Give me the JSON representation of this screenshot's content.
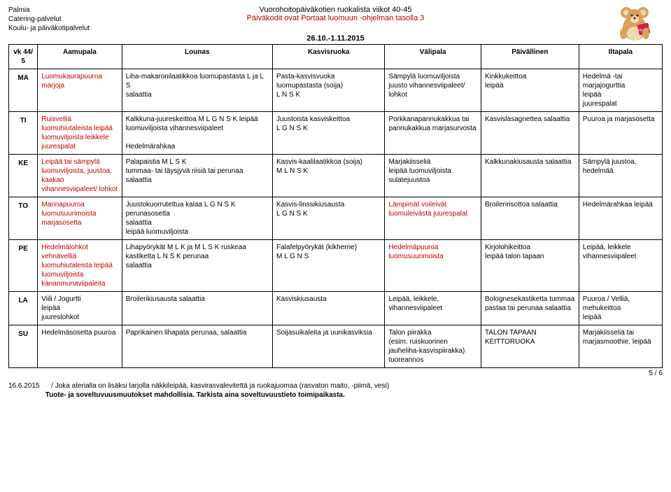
{
  "header": {
    "org1": "Palmia",
    "org2": "Catering-palvelut",
    "org3": "Koulu- ja päiväkotipalvelut",
    "title1": "Vuorohoitopäiväkotien ruokalista viikot 40-45",
    "title2": "Päiväkodit ovat Portaat luomuun -ohjelman tasolla 3",
    "date": "26.10.-1.11.2015"
  },
  "columns": [
    "vk 44/ 5",
    "Aamupala",
    "Lounas",
    "Kasvisruoka",
    "Välipala",
    "Päivällinen",
    "Iltapala"
  ],
  "rows": [
    {
      "day": "MA",
      "cells": [
        {
          "text": "Luomukaurapuuroa marjoja",
          "red": true
        },
        {
          "text": "Liha-makaronilaatikkoa luomupastasta L ja L S\nsalaattia"
        },
        {
          "text": "Pasta-kasvisvuoka luomupastasta (soija)\nL N S K"
        },
        {
          "text": "Sämpylä luomuviljoista juusto vihannesviipaleet/ lohkot"
        },
        {
          "text": "Kinkkukeittoa\nleipää"
        },
        {
          "text": "Hedelmä -tai marjajogurttia\nleipää\njuurespalat"
        }
      ]
    },
    {
      "day": "TI",
      "cells": [
        {
          "text": "Ruisvelliä luomuhiutaleista leipää luomuviljoista leikkele\njuurespalat",
          "red": true
        },
        {
          "text": "Kalkkuna-juureskeittoa M L G N S K leipää luomuviljoista vihannesviipaleet\n\nHedelmärahkaa"
        },
        {
          "text": "Juustoista kasviskeittoa\nL G N S K"
        },
        {
          "text": "Porkkanapannukakkua tai pannukakkua marjasurvosta"
        },
        {
          "text": "Kasvislasagnettea salaattia"
        },
        {
          "text": "Puuroa ja marjasosetta"
        }
      ]
    },
    {
      "day": "KE",
      "cells": [
        {
          "text": "Leipää tai sämpylä luomuviljoista, juustoa, kaakao vihannesviipaleet/ lohkot",
          "red": true
        },
        {
          "text": "Palapaistia M L S K\ntummaa- tai täysjyvä riisiä tai perunaa salaattia"
        },
        {
          "text": "Kasvis-kaalilaatikkoa (soija)\nM L N S K"
        },
        {
          "text": "Marjakiisseliä\nleipää luomuviljoista sulatejuustoa"
        },
        {
          "text": "Kalkkunakiusausta salaattia"
        },
        {
          "text": "Sämpylä juustoa, hedelmää"
        }
      ]
    },
    {
      "day": "TO",
      "cells": [
        {
          "text": "Mannapuuroa luomusuurimoista marjasosetta",
          "red": true
        },
        {
          "text": "Juustokuorrutettua kalaa L G N S K perunasosetta\nsalaattia\nleipää luomuviljoista"
        },
        {
          "text": "Kasvis-linssikiusausta\nL G N S K"
        },
        {
          "text": "Lämpimät voileivät luomuleivästä juurespalat",
          "red": true
        },
        {
          "text": "Broileririsottoa salaattia"
        },
        {
          "text": "Hedelmärahkaa leipää"
        }
      ]
    },
    {
      "day": "PE",
      "cells": [
        {
          "text": "Hedelmälohkot vehnävelliä luomuhiutaleista leipää luomuviljoista kananmunaviipaleita",
          "red": true
        },
        {
          "text": "Lihapyörykät M L K ja M L S K ruskeaa kastiketta L N S K perunaa\nsalaattia"
        },
        {
          "text": "Falafelpyörykät (kikherne)\nM L G N S"
        },
        {
          "text": "Hedelmäpuuroa luomusuurimoista",
          "red": true
        },
        {
          "text": "Kirjolohikeittoa\nleipää talon tapaan"
        },
        {
          "text": "Leipää, leikkele vihannesviipaleet"
        }
      ]
    },
    {
      "day": "LA",
      "cells": [
        {
          "text": "Viili / Jogurtti\nleipää\njuureslohkot"
        },
        {
          "text": "Broilerikiusausta salaattia"
        },
        {
          "text": "Kasviskiusausta"
        },
        {
          "text": "Leipää, leikkele, vihannesviipaleet"
        },
        {
          "text": "Bolognesekastiketta tummaa pastaa tai perunaa salaattia"
        },
        {
          "text": "Puuroa / Velliä, mehukeittoa\nleipää"
        }
      ]
    },
    {
      "day": "SU",
      "cells": [
        {
          "text": "Hedelmäsosetta puuroa"
        },
        {
          "text": "Paprikainen lihapata perunaa, salaattia"
        },
        {
          "text": "Soijasuikaleita ja uunikasviksia"
        },
        {
          "text": "Talon piirakka\n(esim. ruiskuorinen jauheliha-kasvispiirakka) tuoreannos"
        },
        {
          "text": "TALON TAPAAN KEITTORUOKA"
        },
        {
          "text": "Marjakiisseliä tai marjasmoothie, leipää"
        }
      ]
    }
  ],
  "row_borders": [
    "b",
    "n",
    "b",
    "b",
    "b",
    "b",
    "e"
  ],
  "footer": {
    "date": "16.6.2015",
    "line1": "/ Joka aterialla on lisäksi tarjolla näkkileipää, kasvirasvalevitettä ja ruokajuomaa (rasvaton maito, -piimä, vesi)",
    "line2": "Tuote- ja soveltuvuusmuutokset mahdollisia. Tarkista aina soveltuvuustieto toimipaikasta.",
    "page": "5 / 6"
  }
}
